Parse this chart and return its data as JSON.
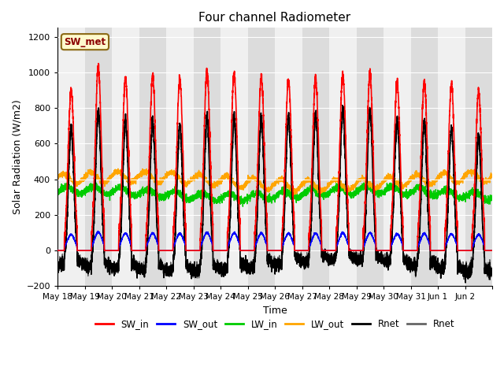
{
  "title": "Four channel Radiometer",
  "xlabel": "Time",
  "ylabel": "Solar Radiation (W/m2)",
  "ylim": [
    -200,
    1250
  ],
  "yticks": [
    -200,
    0,
    200,
    400,
    600,
    800,
    1000,
    1200
  ],
  "annotation_text": "SW_met",
  "annotation_color": "#8B0000",
  "annotation_bg": "#FFFACD",
  "annotation_border": "#8B6914",
  "bg_light": "#F0F0F0",
  "bg_dark": "#DCDCDC",
  "colors": {
    "SW_in": "#FF0000",
    "SW_out": "#0000FF",
    "LW_in": "#00CC00",
    "LW_out": "#FFA500",
    "Rnet_black": "#000000",
    "Rnet_dark": "#666666"
  },
  "n_days": 16,
  "xtick_labels": [
    "May 18",
    "May 19",
    "May 20",
    "May 21",
    "May 22",
    "May 23",
    "May 24",
    "May 25",
    "May 26",
    "May 27",
    "May 28",
    "May 29",
    "May 30",
    "May 31",
    "Jun 1",
    "Jun 2"
  ],
  "legend_labels": [
    "SW_in",
    "SW_out",
    "LW_in",
    "LW_out",
    "Rnet",
    "Rnet"
  ]
}
